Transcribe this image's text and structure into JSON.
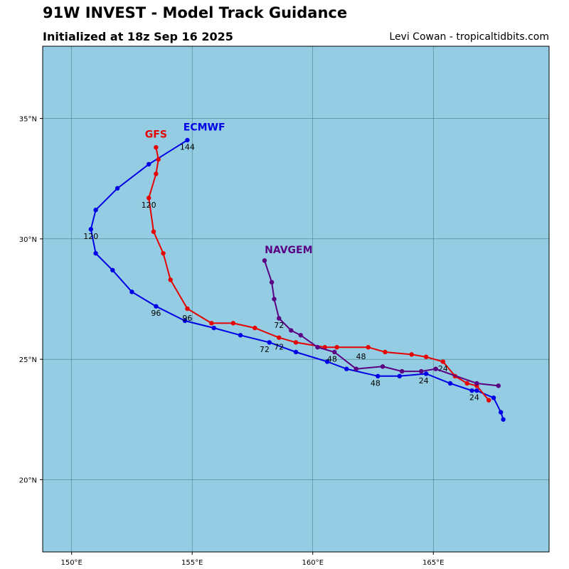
{
  "title": "91W INVEST - Model Track Guidance",
  "subtitle": "Initialized at 18z Sep 16 2025",
  "credit": "Levi Cowan - tropicaltidbits.com",
  "map": {
    "lon_range": [
      148.8,
      169.8
    ],
    "lat_range": [
      17.0,
      38.0
    ],
    "ocean_color": "#94cde3",
    "grid_color": "#4d7f86",
    "lon_ticks": [
      {
        "value": 150,
        "label": "150°E"
      },
      {
        "value": 155,
        "label": "155°E"
      },
      {
        "value": 160,
        "label": "160°E"
      },
      {
        "value": 165,
        "label": "165°E"
      }
    ],
    "lat_ticks": [
      {
        "value": 20,
        "label": "20°N"
      },
      {
        "value": 25,
        "label": "25°N"
      },
      {
        "value": 30,
        "label": "30°N"
      },
      {
        "value": 35,
        "label": "35°N"
      }
    ]
  },
  "models": [
    {
      "name": "ECMWF",
      "color": "#0000e6",
      "label_pos": {
        "lon": 155.5,
        "lat": 34.5
      },
      "points": [
        [
          167.9,
          22.5
        ],
        [
          167.8,
          22.8
        ],
        [
          167.5,
          23.4
        ],
        [
          166.8,
          23.7
        ],
        [
          166.6,
          23.7
        ],
        [
          165.7,
          24.0
        ],
        [
          164.7,
          24.4
        ],
        [
          163.6,
          24.3
        ],
        [
          162.7,
          24.3
        ],
        [
          161.4,
          24.6
        ],
        [
          160.6,
          24.9
        ],
        [
          159.3,
          25.3
        ],
        [
          158.2,
          25.7
        ],
        [
          157.0,
          26.0
        ],
        [
          155.9,
          26.3
        ],
        [
          154.7,
          26.6
        ],
        [
          153.5,
          27.2
        ],
        [
          152.5,
          27.8
        ],
        [
          151.7,
          28.7
        ],
        [
          151.0,
          29.4
        ],
        [
          150.8,
          30.4
        ],
        [
          151.0,
          31.2
        ],
        [
          151.9,
          32.1
        ],
        [
          153.2,
          33.1
        ],
        [
          154.8,
          34.1
        ]
      ],
      "hour_labels": [
        {
          "text": "24",
          "lon": 166.7,
          "lat": 23.3
        },
        {
          "text": "48",
          "lon": 162.6,
          "lat": 23.9
        },
        {
          "text": "72",
          "lon": 158.0,
          "lat": 25.3
        },
        {
          "text": "96",
          "lon": 153.5,
          "lat": 26.8
        },
        {
          "text": "120",
          "lon": 150.8,
          "lat": 30.0
        },
        {
          "text": "144",
          "lon": 154.8,
          "lat": 33.7
        }
      ]
    },
    {
      "name": "GFS",
      "color": "#e60000",
      "label_pos": {
        "lon": 153.5,
        "lat": 34.2
      },
      "points": [
        [
          167.3,
          23.3
        ],
        [
          166.8,
          23.9
        ],
        [
          166.4,
          24.0
        ],
        [
          165.9,
          24.3
        ],
        [
          165.4,
          24.9
        ],
        [
          164.7,
          25.1
        ],
        [
          164.1,
          25.2
        ],
        [
          163.0,
          25.3
        ],
        [
          162.3,
          25.5
        ],
        [
          161.0,
          25.5
        ],
        [
          160.5,
          25.5
        ],
        [
          159.3,
          25.7
        ],
        [
          158.6,
          25.9
        ],
        [
          157.6,
          26.3
        ],
        [
          156.7,
          26.5
        ],
        [
          155.8,
          26.5
        ],
        [
          154.8,
          27.1
        ],
        [
          154.1,
          28.3
        ],
        [
          153.8,
          29.4
        ],
        [
          153.4,
          30.3
        ],
        [
          153.2,
          31.7
        ],
        [
          153.5,
          32.7
        ],
        [
          153.6,
          33.3
        ],
        [
          153.5,
          33.8
        ]
      ],
      "hour_labels": [
        {
          "text": "24",
          "lon": 165.4,
          "lat": 24.5
        },
        {
          "text": "48",
          "lon": 162.0,
          "lat": 25.0
        },
        {
          "text": "72",
          "lon": 158.6,
          "lat": 25.4
        },
        {
          "text": "96",
          "lon": 154.8,
          "lat": 26.6
        },
        {
          "text": "120",
          "lon": 153.2,
          "lat": 31.3
        }
      ]
    },
    {
      "name": "NAVGEM",
      "color": "#5a0082",
      "label_pos": {
        "lon": 159.0,
        "lat": 29.4
      },
      "points": [
        [
          167.7,
          23.9
        ],
        [
          166.8,
          24.0
        ],
        [
          165.1,
          24.6
        ],
        [
          164.5,
          24.5
        ],
        [
          163.7,
          24.5
        ],
        [
          162.9,
          24.7
        ],
        [
          161.8,
          24.6
        ],
        [
          160.9,
          25.3
        ],
        [
          160.2,
          25.5
        ],
        [
          159.5,
          26.0
        ],
        [
          159.1,
          26.2
        ],
        [
          158.6,
          26.7
        ],
        [
          158.4,
          27.5
        ],
        [
          158.3,
          28.2
        ],
        [
          158.0,
          29.1
        ]
      ],
      "hour_labels": [
        {
          "text": "24",
          "lon": 164.6,
          "lat": 24.0
        },
        {
          "text": "48",
          "lon": 160.8,
          "lat": 24.9
        },
        {
          "text": "72",
          "lon": 158.6,
          "lat": 26.3
        }
      ]
    }
  ]
}
